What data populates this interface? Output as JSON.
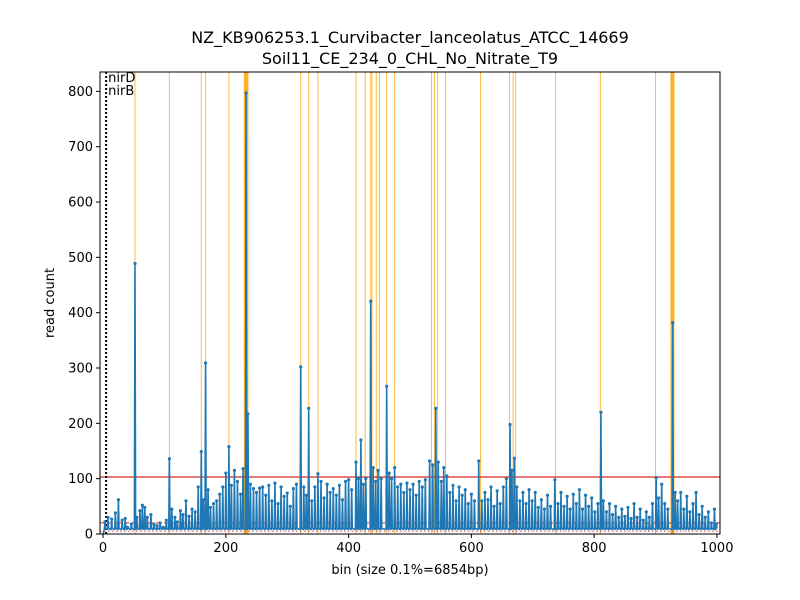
{
  "chart_data": {
    "type": "line",
    "title_lines": [
      "NZ_KB906253.1_Curvibacter_lanceolatus_ATCC_14669",
      "Soil11_CE_234_0_CHL_No_Nitrate_T9"
    ],
    "xlabel": "bin (size 0.1%=6854bp)",
    "ylabel": "read count",
    "xlim": [
      -5,
      1005
    ],
    "ylim": [
      0,
      835
    ],
    "xticks": [
      0,
      200,
      400,
      600,
      800,
      1000
    ],
    "yticks": [
      0,
      100,
      200,
      300,
      400,
      500,
      600,
      700,
      800
    ],
    "grid": false,
    "colors": {
      "series": "#1f77b4",
      "highlight": "#ffa500",
      "threshold": "#d62728",
      "marker": "#000000"
    },
    "gene_markers": [
      {
        "label": "nirD",
        "x": 5
      },
      {
        "label": "nirB",
        "x": 5
      }
    ],
    "reference_lines": [
      {
        "kind": "solid",
        "y": 103
      },
      {
        "kind": "dashed",
        "y": 20
      },
      {
        "kind": "dotted",
        "y": 5
      }
    ],
    "highlight_bins": [
      52,
      108,
      160,
      167,
      205,
      230,
      231,
      232,
      233,
      234,
      235,
      236,
      322,
      335,
      350,
      412,
      427,
      436,
      438,
      445,
      450,
      462,
      475,
      535,
      540,
      545,
      558,
      615,
      662,
      668,
      672,
      737,
      810,
      900,
      925,
      926,
      927,
      928,
      929,
      930
    ],
    "peaks": [
      {
        "x": 3,
        "y": 22
      },
      {
        "x": 8,
        "y": 30
      },
      {
        "x": 14,
        "y": 27
      },
      {
        "x": 20,
        "y": 38
      },
      {
        "x": 25,
        "y": 62
      },
      {
        "x": 31,
        "y": 25
      },
      {
        "x": 36,
        "y": 28
      },
      {
        "x": 40,
        "y": 12
      },
      {
        "x": 46,
        "y": 18
      },
      {
        "x": 52,
        "y": 489
      },
      {
        "x": 55,
        "y": 30
      },
      {
        "x": 60,
        "y": 42
      },
      {
        "x": 64,
        "y": 52
      },
      {
        "x": 68,
        "y": 48
      },
      {
        "x": 72,
        "y": 30
      },
      {
        "x": 78,
        "y": 35
      },
      {
        "x": 83,
        "y": 18
      },
      {
        "x": 88,
        "y": 15
      },
      {
        "x": 93,
        "y": 20
      },
      {
        "x": 98,
        "y": 12
      },
      {
        "x": 103,
        "y": 25
      },
      {
        "x": 108,
        "y": 136
      },
      {
        "x": 112,
        "y": 45
      },
      {
        "x": 117,
        "y": 30
      },
      {
        "x": 121,
        "y": 22
      },
      {
        "x": 126,
        "y": 42
      },
      {
        "x": 130,
        "y": 35
      },
      {
        "x": 135,
        "y": 60
      },
      {
        "x": 140,
        "y": 32
      },
      {
        "x": 145,
        "y": 45
      },
      {
        "x": 150,
        "y": 40
      },
      {
        "x": 155,
        "y": 85
      },
      {
        "x": 160,
        "y": 149
      },
      {
        "x": 163,
        "y": 62
      },
      {
        "x": 167,
        "y": 309
      },
      {
        "x": 171,
        "y": 80
      },
      {
        "x": 175,
        "y": 48
      },
      {
        "x": 180,
        "y": 55
      },
      {
        "x": 185,
        "y": 60
      },
      {
        "x": 190,
        "y": 72
      },
      {
        "x": 195,
        "y": 85
      },
      {
        "x": 200,
        "y": 110
      },
      {
        "x": 205,
        "y": 158
      },
      {
        "x": 209,
        "y": 88
      },
      {
        "x": 214,
        "y": 115
      },
      {
        "x": 219,
        "y": 95
      },
      {
        "x": 224,
        "y": 72
      },
      {
        "x": 228,
        "y": 118
      },
      {
        "x": 233,
        "y": 797
      },
      {
        "x": 236,
        "y": 217
      },
      {
        "x": 240,
        "y": 90
      },
      {
        "x": 245,
        "y": 82
      },
      {
        "x": 250,
        "y": 75
      },
      {
        "x": 255,
        "y": 83
      },
      {
        "x": 260,
        "y": 85
      },
      {
        "x": 265,
        "y": 70
      },
      {
        "x": 270,
        "y": 88
      },
      {
        "x": 275,
        "y": 60
      },
      {
        "x": 280,
        "y": 92
      },
      {
        "x": 285,
        "y": 55
      },
      {
        "x": 290,
        "y": 85
      },
      {
        "x": 295,
        "y": 68
      },
      {
        "x": 300,
        "y": 74
      },
      {
        "x": 305,
        "y": 50
      },
      {
        "x": 310,
        "y": 82
      },
      {
        "x": 315,
        "y": 90
      },
      {
        "x": 322,
        "y": 302
      },
      {
        "x": 327,
        "y": 85
      },
      {
        "x": 331,
        "y": 70
      },
      {
        "x": 335,
        "y": 227
      },
      {
        "x": 340,
        "y": 60
      },
      {
        "x": 345,
        "y": 85
      },
      {
        "x": 350,
        "y": 109
      },
      {
        "x": 355,
        "y": 95
      },
      {
        "x": 360,
        "y": 65
      },
      {
        "x": 365,
        "y": 90
      },
      {
        "x": 370,
        "y": 75
      },
      {
        "x": 375,
        "y": 82
      },
      {
        "x": 380,
        "y": 70
      },
      {
        "x": 385,
        "y": 88
      },
      {
        "x": 390,
        "y": 62
      },
      {
        "x": 395,
        "y": 95
      },
      {
        "x": 400,
        "y": 98
      },
      {
        "x": 405,
        "y": 80
      },
      {
        "x": 412,
        "y": 130
      },
      {
        "x": 416,
        "y": 100
      },
      {
        "x": 420,
        "y": 170
      },
      {
        "x": 424,
        "y": 90
      },
      {
        "x": 428,
        "y": 100
      },
      {
        "x": 436,
        "y": 421
      },
      {
        "x": 440,
        "y": 120
      },
      {
        "x": 444,
        "y": 95
      },
      {
        "x": 448,
        "y": 115
      },
      {
        "x": 453,
        "y": 100
      },
      {
        "x": 462,
        "y": 267
      },
      {
        "x": 466,
        "y": 110
      },
      {
        "x": 470,
        "y": 100
      },
      {
        "x": 475,
        "y": 120
      },
      {
        "x": 480,
        "y": 85
      },
      {
        "x": 485,
        "y": 90
      },
      {
        "x": 490,
        "y": 75
      },
      {
        "x": 495,
        "y": 92
      },
      {
        "x": 500,
        "y": 80
      },
      {
        "x": 505,
        "y": 90
      },
      {
        "x": 510,
        "y": 70
      },
      {
        "x": 515,
        "y": 95
      },
      {
        "x": 520,
        "y": 85
      },
      {
        "x": 525,
        "y": 98
      },
      {
        "x": 532,
        "y": 132
      },
      {
        "x": 537,
        "y": 125
      },
      {
        "x": 542,
        "y": 227
      },
      {
        "x": 546,
        "y": 130
      },
      {
        "x": 551,
        "y": 95
      },
      {
        "x": 555,
        "y": 120
      },
      {
        "x": 560,
        "y": 105
      },
      {
        "x": 565,
        "y": 75
      },
      {
        "x": 570,
        "y": 88
      },
      {
        "x": 575,
        "y": 60
      },
      {
        "x": 580,
        "y": 85
      },
      {
        "x": 585,
        "y": 70
      },
      {
        "x": 590,
        "y": 80
      },
      {
        "x": 595,
        "y": 55
      },
      {
        "x": 600,
        "y": 72
      },
      {
        "x": 605,
        "y": 60
      },
      {
        "x": 612,
        "y": 132
      },
      {
        "x": 617,
        "y": 60
      },
      {
        "x": 622,
        "y": 75
      },
      {
        "x": 627,
        "y": 62
      },
      {
        "x": 632,
        "y": 85
      },
      {
        "x": 637,
        "y": 50
      },
      {
        "x": 642,
        "y": 78
      },
      {
        "x": 647,
        "y": 55
      },
      {
        "x": 652,
        "y": 85
      },
      {
        "x": 657,
        "y": 100
      },
      {
        "x": 663,
        "y": 198
      },
      {
        "x": 666,
        "y": 115
      },
      {
        "x": 670,
        "y": 137
      },
      {
        "x": 674,
        "y": 85
      },
      {
        "x": 679,
        "y": 60
      },
      {
        "x": 684,
        "y": 75
      },
      {
        "x": 689,
        "y": 55
      },
      {
        "x": 694,
        "y": 80
      },
      {
        "x": 699,
        "y": 60
      },
      {
        "x": 704,
        "y": 75
      },
      {
        "x": 709,
        "y": 48
      },
      {
        "x": 714,
        "y": 62
      },
      {
        "x": 719,
        "y": 45
      },
      {
        "x": 724,
        "y": 70
      },
      {
        "x": 729,
        "y": 50
      },
      {
        "x": 736,
        "y": 98
      },
      {
        "x": 741,
        "y": 55
      },
      {
        "x": 746,
        "y": 75
      },
      {
        "x": 751,
        "y": 50
      },
      {
        "x": 756,
        "y": 68
      },
      {
        "x": 761,
        "y": 45
      },
      {
        "x": 766,
        "y": 72
      },
      {
        "x": 771,
        "y": 55
      },
      {
        "x": 776,
        "y": 80
      },
      {
        "x": 781,
        "y": 45
      },
      {
        "x": 786,
        "y": 70
      },
      {
        "x": 791,
        "y": 50
      },
      {
        "x": 796,
        "y": 65
      },
      {
        "x": 801,
        "y": 40
      },
      {
        "x": 806,
        "y": 55
      },
      {
        "x": 811,
        "y": 220
      },
      {
        "x": 815,
        "y": 60
      },
      {
        "x": 820,
        "y": 40
      },
      {
        "x": 825,
        "y": 55
      },
      {
        "x": 830,
        "y": 35
      },
      {
        "x": 835,
        "y": 50
      },
      {
        "x": 840,
        "y": 30
      },
      {
        "x": 845,
        "y": 45
      },
      {
        "x": 850,
        "y": 32
      },
      {
        "x": 855,
        "y": 48
      },
      {
        "x": 860,
        "y": 28
      },
      {
        "x": 865,
        "y": 55
      },
      {
        "x": 870,
        "y": 30
      },
      {
        "x": 875,
        "y": 45
      },
      {
        "x": 880,
        "y": 25
      },
      {
        "x": 885,
        "y": 40
      },
      {
        "x": 890,
        "y": 30
      },
      {
        "x": 895,
        "y": 55
      },
      {
        "x": 901,
        "y": 102
      },
      {
        "x": 905,
        "y": 65
      },
      {
        "x": 910,
        "y": 90
      },
      {
        "x": 915,
        "y": 55
      },
      {
        "x": 920,
        "y": 45
      },
      {
        "x": 928,
        "y": 382
      },
      {
        "x": 932,
        "y": 75
      },
      {
        "x": 936,
        "y": 60
      },
      {
        "x": 941,
        "y": 75
      },
      {
        "x": 946,
        "y": 45
      },
      {
        "x": 951,
        "y": 68
      },
      {
        "x": 956,
        "y": 40
      },
      {
        "x": 961,
        "y": 55
      },
      {
        "x": 966,
        "y": 75
      },
      {
        "x": 971,
        "y": 35
      },
      {
        "x": 976,
        "y": 50
      },
      {
        "x": 981,
        "y": 30
      },
      {
        "x": 986,
        "y": 40
      },
      {
        "x": 991,
        "y": 20
      },
      {
        "x": 996,
        "y": 45
      },
      {
        "x": 999,
        "y": 18
      }
    ]
  }
}
